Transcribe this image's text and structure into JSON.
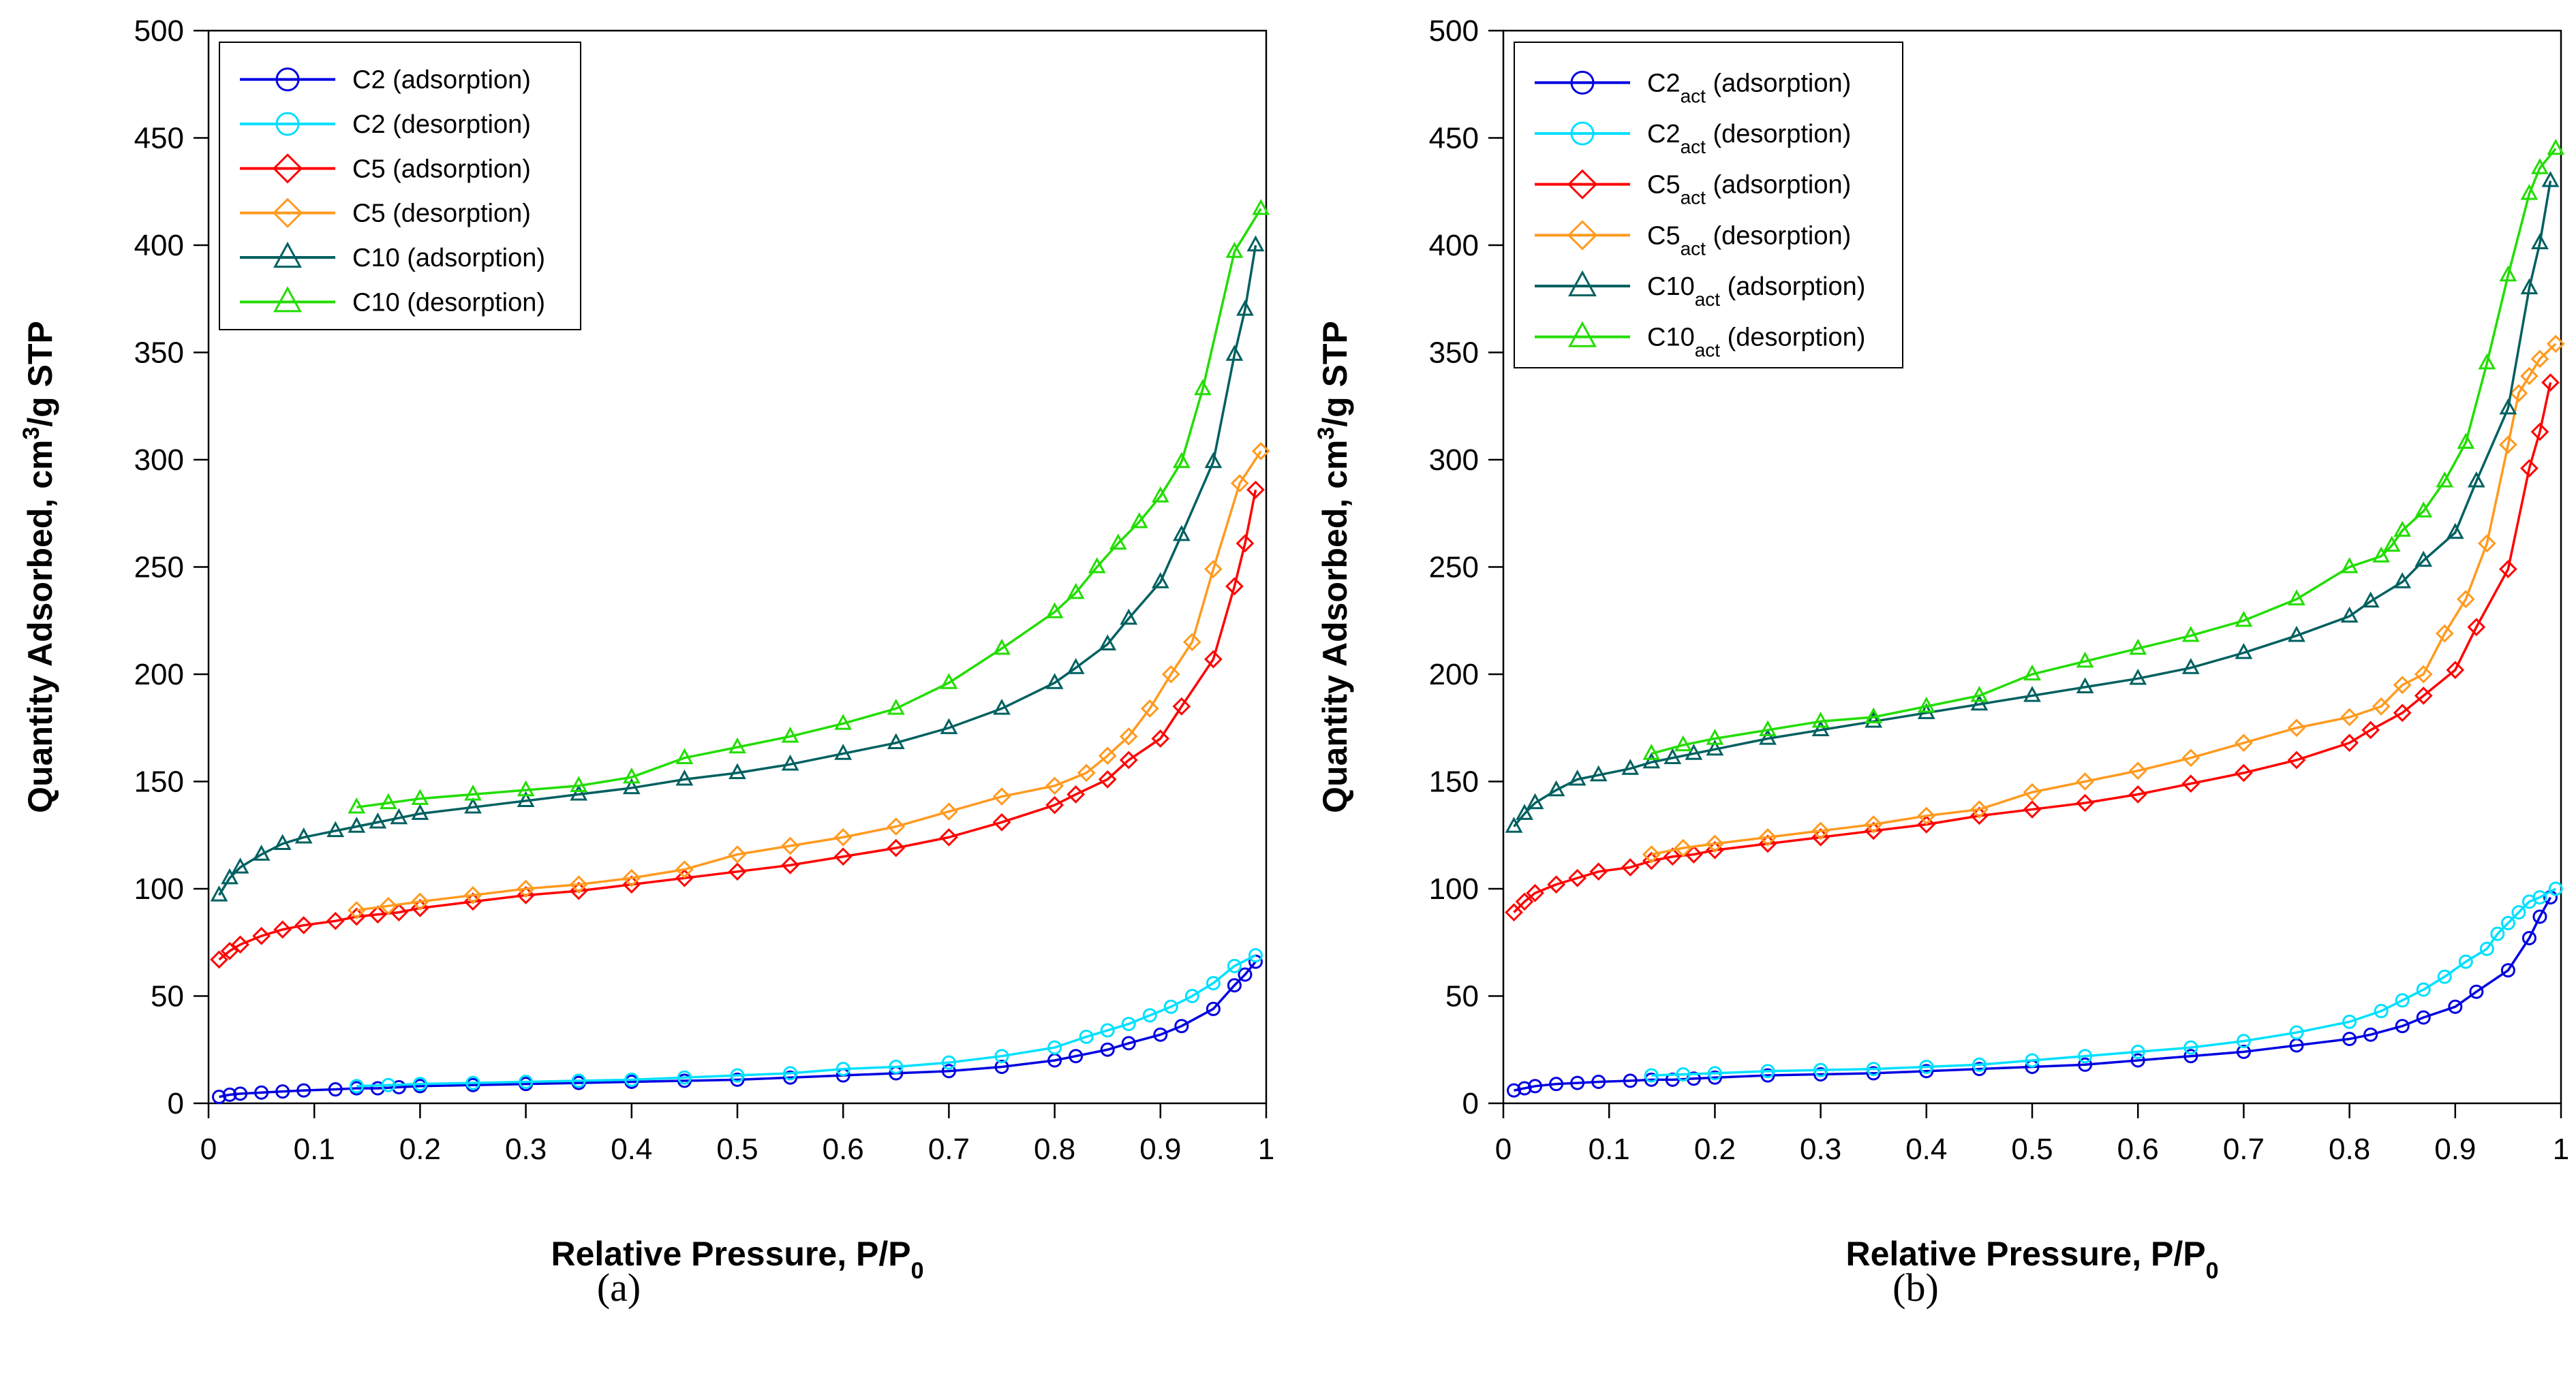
{
  "figure": {
    "panels": [
      "(a)",
      "(b)"
    ]
  },
  "colors": {
    "c2_ads": "#0000e0",
    "c2_des": "#00e0ff",
    "c5_ads": "#ff0000",
    "c5_des": "#ff9a1f",
    "c10_ads": "#006060",
    "c10_des": "#22dd00"
  },
  "chart_data": [
    {
      "type": "line",
      "panel_label": "(a)",
      "xlabel": "Relative Pressure, P/P",
      "xlabel_sub": "0",
      "ylabel_pre": "Quantity Adsorbed, cm",
      "ylabel_sup": "3",
      "ylabel_post": "/g STP",
      "xlim": [
        0,
        1
      ],
      "ylim": [
        0,
        500
      ],
      "xticks": [
        "0",
        "0.1",
        "0.2",
        "0.3",
        "0.4",
        "0.5",
        "0.6",
        "0.7",
        "0.8",
        "0.9",
        "1"
      ],
      "yticks": [
        "0",
        "50",
        "100",
        "150",
        "200",
        "250",
        "300",
        "350",
        "400",
        "450",
        "500"
      ],
      "legend_position": "top-left",
      "series": [
        {
          "name": "C2 (adsorption)",
          "base": "C2",
          "sub": "",
          "suffix": " (adsorption)",
          "marker": "circle",
          "color_key": "c2_ads",
          "x": [
            0.01,
            0.02,
            0.03,
            0.05,
            0.07,
            0.09,
            0.12,
            0.14,
            0.16,
            0.18,
            0.2,
            0.25,
            0.3,
            0.35,
            0.4,
            0.45,
            0.5,
            0.55,
            0.6,
            0.65,
            0.7,
            0.75,
            0.8,
            0.82,
            0.85,
            0.87,
            0.9,
            0.92,
            0.95,
            0.97,
            0.98,
            0.99
          ],
          "y": [
            3,
            4,
            4.5,
            5,
            5.5,
            6,
            6.5,
            7,
            7,
            7.5,
            8,
            8.5,
            9,
            9.5,
            10,
            10.5,
            11,
            12,
            13,
            14,
            15,
            17,
            20,
            22,
            25,
            28,
            32,
            36,
            44,
            55,
            60,
            66
          ]
        },
        {
          "name": "C2 (desorption)",
          "base": "C2",
          "sub": "",
          "suffix": " (desorption)",
          "marker": "circle",
          "color_key": "c2_des",
          "x": [
            0.99,
            0.97,
            0.95,
            0.93,
            0.91,
            0.89,
            0.87,
            0.85,
            0.83,
            0.8,
            0.75,
            0.7,
            0.65,
            0.6,
            0.55,
            0.5,
            0.45,
            0.4,
            0.35,
            0.3,
            0.25,
            0.2,
            0.17,
            0.14
          ],
          "y": [
            69,
            64,
            56,
            50,
            45,
            41,
            37,
            34,
            31,
            26,
            22,
            19,
            17,
            16,
            14,
            13,
            12,
            11,
            10.5,
            10,
            9.5,
            9,
            8.5,
            8
          ]
        },
        {
          "name": "C5 (adsorption)",
          "base": "C5",
          "sub": "",
          "suffix": " (adsorption)",
          "marker": "diamond",
          "color_key": "c5_ads",
          "x": [
            0.01,
            0.02,
            0.03,
            0.05,
            0.07,
            0.09,
            0.12,
            0.14,
            0.16,
            0.18,
            0.2,
            0.25,
            0.3,
            0.35,
            0.4,
            0.45,
            0.5,
            0.55,
            0.6,
            0.65,
            0.7,
            0.75,
            0.8,
            0.82,
            0.85,
            0.87,
            0.9,
            0.92,
            0.95,
            0.97,
            0.98,
            0.99
          ],
          "y": [
            67,
            71,
            74,
            78,
            81,
            83,
            85,
            87,
            88,
            89,
            91,
            94,
            97,
            99,
            102,
            105,
            108,
            111,
            115,
            119,
            124,
            131,
            139,
            144,
            151,
            160,
            170,
            185,
            207,
            241,
            261,
            286
          ]
        },
        {
          "name": "C5 (desorption)",
          "base": "C5",
          "sub": "",
          "suffix": " (desorption)",
          "marker": "diamond",
          "color_key": "c5_des",
          "x": [
            0.995,
            0.975,
            0.95,
            0.93,
            0.91,
            0.89,
            0.87,
            0.85,
            0.83,
            0.8,
            0.75,
            0.7,
            0.65,
            0.6,
            0.55,
            0.5,
            0.45,
            0.4,
            0.35,
            0.3,
            0.25,
            0.2,
            0.17,
            0.14
          ],
          "y": [
            304,
            289,
            249,
            215,
            200,
            184,
            171,
            162,
            154,
            148,
            143,
            136,
            129,
            124,
            120,
            116,
            109,
            105,
            102,
            100,
            97,
            94,
            92,
            90
          ]
        },
        {
          "name": "C10 (adsorption)",
          "base": "C10",
          "sub": "",
          "suffix": " (adsorption)",
          "marker": "triangle",
          "color_key": "c10_ads",
          "x": [
            0.01,
            0.02,
            0.03,
            0.05,
            0.07,
            0.09,
            0.12,
            0.14,
            0.16,
            0.18,
            0.2,
            0.25,
            0.3,
            0.35,
            0.4,
            0.45,
            0.5,
            0.55,
            0.6,
            0.65,
            0.7,
            0.75,
            0.8,
            0.82,
            0.85,
            0.87,
            0.9,
            0.92,
            0.95,
            0.97,
            0.98,
            0.99
          ],
          "y": [
            97,
            105,
            110,
            116,
            121,
            124,
            127,
            129,
            131,
            133,
            135,
            138,
            141,
            144,
            147,
            151,
            154,
            158,
            163,
            168,
            175,
            184,
            196,
            203,
            214,
            226,
            243,
            265,
            299,
            349,
            370,
            400
          ]
        },
        {
          "name": "C10 (desorption)",
          "base": "C10",
          "sub": "",
          "suffix": " (desorption)",
          "marker": "triangle",
          "color_key": "c10_des",
          "x": [
            0.995,
            0.97,
            0.94,
            0.92,
            0.9,
            0.88,
            0.86,
            0.84,
            0.82,
            0.8,
            0.75,
            0.7,
            0.65,
            0.6,
            0.55,
            0.5,
            0.45,
            0.4,
            0.35,
            0.3,
            0.25,
            0.2,
            0.17,
            0.14
          ],
          "y": [
            417,
            397,
            333,
            299,
            283,
            271,
            261,
            250,
            238,
            229,
            212,
            196,
            184,
            177,
            171,
            166,
            161,
            152,
            148,
            146,
            144,
            142,
            140,
            138
          ]
        }
      ]
    },
    {
      "type": "line",
      "panel_label": "(b)",
      "xlabel": "Relative Pressure, P/P",
      "xlabel_sub": "0",
      "ylabel_pre": "Quantity Adsorbed, cm",
      "ylabel_sup": "3",
      "ylabel_post": "/g STP",
      "xlim": [
        0,
        1
      ],
      "ylim": [
        0,
        500
      ],
      "xticks": [
        "0",
        "0.1",
        "0.2",
        "0.3",
        "0.4",
        "0.5",
        "0.6",
        "0.7",
        "0.8",
        "0.9",
        "1"
      ],
      "yticks": [
        "0",
        "50",
        "100",
        "150",
        "200",
        "250",
        "300",
        "350",
        "400",
        "450",
        "500"
      ],
      "legend_position": "top-left",
      "series": [
        {
          "name": "C2act (adsorption)",
          "base": "C2",
          "sub": "act",
          "suffix": " (adsorption)",
          "marker": "circle",
          "color_key": "c2_ads",
          "x": [
            0.01,
            0.02,
            0.03,
            0.05,
            0.07,
            0.09,
            0.12,
            0.14,
            0.16,
            0.18,
            0.2,
            0.25,
            0.3,
            0.35,
            0.4,
            0.45,
            0.5,
            0.55,
            0.6,
            0.65,
            0.7,
            0.75,
            0.8,
            0.82,
            0.85,
            0.87,
            0.9,
            0.92,
            0.95,
            0.97,
            0.98,
            0.99
          ],
          "y": [
            6,
            7,
            8,
            9,
            9.5,
            10,
            10.5,
            11,
            11,
            11.5,
            12,
            13,
            13.5,
            14,
            15,
            16,
            17,
            18,
            20,
            22,
            24,
            27,
            30,
            32,
            36,
            40,
            45,
            52,
            62,
            77,
            87,
            96
          ]
        },
        {
          "name": "C2act (desorption)",
          "base": "C2",
          "sub": "act",
          "suffix": " (desorption)",
          "marker": "circle",
          "color_key": "c2_des",
          "x": [
            0.995,
            0.98,
            0.97,
            0.96,
            0.95,
            0.94,
            0.93,
            0.91,
            0.89,
            0.87,
            0.85,
            0.83,
            0.8,
            0.75,
            0.7,
            0.65,
            0.6,
            0.55,
            0.5,
            0.45,
            0.4,
            0.35,
            0.3,
            0.25,
            0.2,
            0.17,
            0.14
          ],
          "y": [
            100,
            96,
            94,
            89,
            84,
            79,
            72,
            66,
            59,
            53,
            48,
            43,
            38,
            33,
            29,
            26,
            24,
            22,
            20,
            18,
            17,
            16,
            15.5,
            15,
            14,
            13.5,
            13
          ]
        },
        {
          "name": "C5act (adsorption)",
          "base": "C5",
          "sub": "act",
          "suffix": " (adsorption)",
          "marker": "diamond",
          "color_key": "c5_ads",
          "x": [
            0.01,
            0.02,
            0.03,
            0.05,
            0.07,
            0.09,
            0.12,
            0.14,
            0.16,
            0.18,
            0.2,
            0.25,
            0.3,
            0.35,
            0.4,
            0.45,
            0.5,
            0.55,
            0.6,
            0.65,
            0.7,
            0.75,
            0.8,
            0.82,
            0.85,
            0.87,
            0.9,
            0.92,
            0.95,
            0.97,
            0.98,
            0.99
          ],
          "y": [
            89,
            94,
            98,
            102,
            105,
            108,
            110,
            113,
            115,
            116,
            118,
            121,
            124,
            127,
            130,
            134,
            137,
            140,
            144,
            149,
            154,
            160,
            168,
            174,
            182,
            190,
            202,
            222,
            249,
            296,
            313,
            336
          ]
        },
        {
          "name": "C5act (desorption)",
          "base": "C5",
          "sub": "act",
          "suffix": " (desorption)",
          "marker": "diamond",
          "color_key": "c5_des",
          "x": [
            0.995,
            0.98,
            0.97,
            0.96,
            0.95,
            0.93,
            0.91,
            0.89,
            0.87,
            0.85,
            0.83,
            0.8,
            0.75,
            0.7,
            0.65,
            0.6,
            0.55,
            0.5,
            0.45,
            0.4,
            0.35,
            0.3,
            0.25,
            0.2,
            0.17,
            0.14
          ],
          "y": [
            354,
            347,
            339,
            331,
            307,
            261,
            235,
            219,
            200,
            195,
            185,
            180,
            175,
            168,
            161,
            155,
            150,
            145,
            137,
            134,
            130,
            127,
            124,
            121,
            119,
            116
          ]
        },
        {
          "name": "C10act (adsorption)",
          "base": "C10",
          "sub": "act",
          "suffix": " (adsorption)",
          "marker": "triangle",
          "color_key": "c10_ads",
          "x": [
            0.01,
            0.02,
            0.03,
            0.05,
            0.07,
            0.09,
            0.12,
            0.14,
            0.16,
            0.18,
            0.2,
            0.25,
            0.3,
            0.35,
            0.4,
            0.45,
            0.5,
            0.55,
            0.6,
            0.65,
            0.7,
            0.75,
            0.8,
            0.82,
            0.85,
            0.87,
            0.9,
            0.92,
            0.95,
            0.97,
            0.98,
            0.99
          ],
          "y": [
            129,
            135,
            140,
            146,
            151,
            153,
            156,
            159,
            161,
            163,
            165,
            170,
            174,
            178,
            182,
            186,
            190,
            194,
            198,
            203,
            210,
            218,
            227,
            234,
            243,
            253,
            266,
            290,
            324,
            380,
            401,
            430
          ]
        },
        {
          "name": "C10act (desorption)",
          "base": "C10",
          "sub": "act",
          "suffix": " (desorption)",
          "marker": "triangle",
          "color_key": "c10_des",
          "x": [
            0.995,
            0.98,
            0.97,
            0.95,
            0.93,
            0.91,
            0.89,
            0.87,
            0.85,
            0.84,
            0.83,
            0.8,
            0.75,
            0.7,
            0.65,
            0.6,
            0.55,
            0.5,
            0.45,
            0.4,
            0.35,
            0.3,
            0.25,
            0.2,
            0.17,
            0.14
          ],
          "y": [
            445,
            436,
            424,
            386,
            345,
            308,
            290,
            276,
            267,
            260,
            255,
            250,
            235,
            225,
            218,
            212,
            206,
            200,
            190,
            185,
            180,
            178,
            174,
            170,
            167,
            163
          ]
        }
      ]
    }
  ]
}
